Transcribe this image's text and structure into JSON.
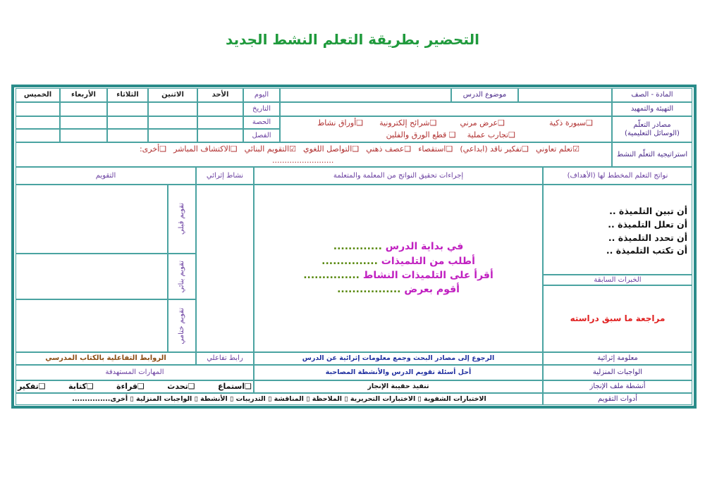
{
  "title": "التحضير بطريقة التعلم النشط الجديد",
  "header": {
    "subject_grade_label": "المادة - الصف",
    "lesson_topic_label": "موضوع الدرس",
    "warmup_label": "التهيئة والتمهيد",
    "day_label": "اليوم",
    "date_label": "التاريخ",
    "period_label": "الحصة",
    "class_label": "الفصل",
    "days": [
      "الأحد",
      "الاثنين",
      "الثلاثاء",
      "الأربعاء",
      "الخميس"
    ]
  },
  "resources": {
    "label_line1": "مصادر التعلّم",
    "label_line2": "(الوسائل التعليمية)",
    "items": [
      {
        "label": "سبورة ذكية",
        "checked": false
      },
      {
        "label": "عرض مرني",
        "checked": false
      },
      {
        "label": "شرائح إلكترونية",
        "checked": false
      },
      {
        "label": "أوراق نشاط",
        "checked": false
      },
      {
        "label": "تجارب عملية",
        "checked": false
      },
      {
        "label": "قطع الورق والفلين",
        "checked": false
      }
    ]
  },
  "strategies": {
    "label": "استراتيجية التعلّم النشط",
    "items": [
      {
        "label": "تعلم تعاوني",
        "checked": true
      },
      {
        "label": "تفكير ناقد (ابداعي)",
        "checked": false
      },
      {
        "label": "استقصاء",
        "checked": false
      },
      {
        "label": "عصف ذهني",
        "checked": false
      },
      {
        "label": "التواصل اللغوي",
        "checked": false
      },
      {
        "label": "التقويم البنائي",
        "checked": true
      },
      {
        "label": "الاكتشاف المباشر",
        "checked": false
      },
      {
        "label": "أخرى:",
        "checked": false
      }
    ],
    "other_placeholder": "........................."
  },
  "main": {
    "outcomes_header": "نواتج التعلم المخطط لها (الأهداف)",
    "procedures_header": "إجراءات تحقيق النواتج من المعلمة والمتعلمة",
    "enrichment_header": "نشاط إثرائي",
    "evaluation_header": "التقويم",
    "objectives": [
      "أن تبين التلميذة ..",
      "أن تعلل التلميذة ..",
      "أن تحدد التلميذة ..",
      "أن تكتب التلميذة .."
    ],
    "prior_label": "الخبرات السابقة",
    "prior_value": "مراجعة ما سبق دراسته",
    "procedures": [
      {
        "text": "في بداية الدرس",
        "dots": "............."
      },
      {
        "text": "أطلب من التلميذات",
        "dots": "..............."
      },
      {
        "text": "أقرأ على التلميذات النشاط",
        "dots": "..............."
      },
      {
        "text": "أقوم بعرض",
        "dots": "................."
      }
    ],
    "evaluation_types": [
      "تقويم قبلي",
      "تقويم بنائي",
      "تقويم ختامي"
    ]
  },
  "footer": {
    "enrichment_info_label": "معلومة إثرائية",
    "enrichment_info_value": "الرجوع إلى مصادر البحث وجمع معلومات إثرائية عن الدرس",
    "interactive_link_label": "رابط تفاعلي",
    "interactive_link_value": "الروابط التفاعلية بالكتاب المدرسي",
    "homework_label": "الواجبات المنزلية",
    "homework_value": "أحل أسئلة تقويم الدرس والأنشطة المصاحبة",
    "skills_label": "المهارات المستهدفة",
    "portfolio_label": "أنشطة ملف الإنجاز",
    "portfolio_value": "تنفيذ حقيبة الإنجاز",
    "skills": [
      "استماع",
      "تحدث",
      "قراءة",
      "كتابة",
      "تفكير"
    ],
    "tools_label": "أدوات التقويم",
    "tools_value": "الاختبارات الشفوية ▯ الاختبارات التحريرية ▯ الملاحظة ▯ المناقشة ▯ التدريبات ▯ الأنشطة ▯ الواجبات المنزلية ▯ أخرى..............."
  },
  "colors": {
    "title": "#1f9a3c",
    "border": "#2a8c8a",
    "checkbox_text": "#b03030",
    "procedure_text": "#c020c0",
    "prior_value": "#e02020"
  }
}
